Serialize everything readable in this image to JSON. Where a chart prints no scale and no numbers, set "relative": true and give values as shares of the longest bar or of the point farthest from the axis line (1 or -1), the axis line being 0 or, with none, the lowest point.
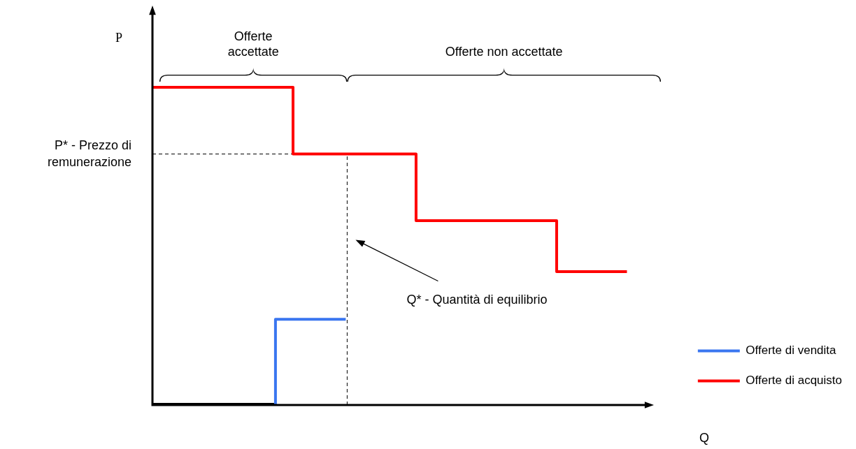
{
  "chart_data": {
    "type": "step",
    "relative": true,
    "xlabel": "Q",
    "ylabel": "P",
    "tick_labels": false,
    "legend": "bottom right",
    "categories": [
      null,
      null,
      null,
      null,
      null,
      null,
      null,
      null,
      null,
      null,
      null,
      null,
      null,
      null,
      null,
      null,
      null,
      null,
      null,
      null,
      null,
      null,
      null,
      null,
      null,
      null,
      null,
      null,
      null,
      null,
      null
    ],
    "series": [
      {
        "name": "Offerte di vendita",
        "color": "#3a76f0",
        "values": [
          null,
          null,
          null,
          null,
          null,
          null,
          null,
          0,
          0.27,
          0.27,
          0.27,
          0.27,
          null,
          null,
          null,
          null,
          null,
          null,
          null,
          null,
          null,
          null,
          null,
          null,
          null,
          null,
          null,
          null,
          null,
          null,
          null
        ]
      },
      {
        "name": "Offerte di acquisto",
        "color": "#ff0000",
        "values": [
          1,
          1,
          1,
          1,
          1,
          1,
          1,
          1,
          1,
          0.79,
          0.79,
          0.79,
          0.79,
          0.79,
          0.79,
          0.79,
          0.58,
          0.58,
          0.58,
          0.58,
          0.58,
          0.58,
          0.58,
          0.58,
          0.42,
          0.42,
          0.42,
          0.42,
          null,
          null,
          null
        ]
      },
      {
        "color": "#000000",
        "values": [
          0,
          0,
          0,
          0,
          0,
          0,
          0,
          0,
          null,
          null,
          null,
          null,
          null,
          null,
          null,
          null,
          null,
          null,
          null,
          null,
          null,
          null,
          null,
          null,
          null,
          null,
          null,
          null,
          null,
          null,
          null
        ]
      }
    ],
    "ref_lines": [
      {
        "axis": "y",
        "value": 0.79,
        "label": "P* - Prezzo di remunerazione",
        "color": "#000000",
        "line_style": "dashed"
      }
    ],
    "annotations": [
      "Q* - Quantità di equilibrio",
      "Offerte accettate",
      "Offerte non accettate"
    ]
  }
}
